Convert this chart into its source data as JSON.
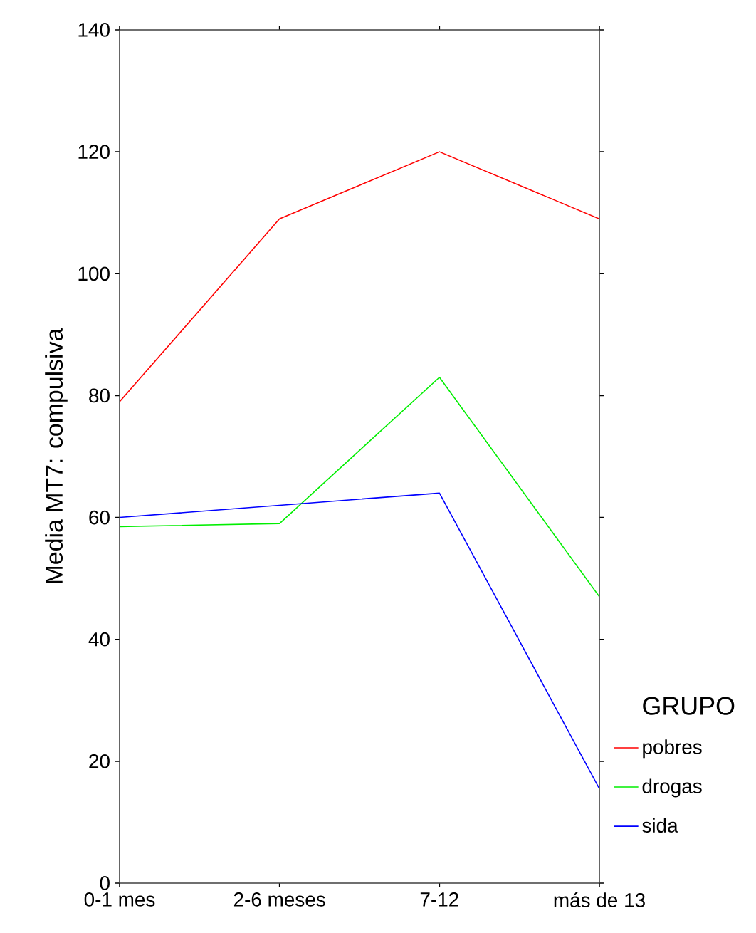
{
  "chart_data": {
    "type": "line",
    "ylabel": "Media MT7: compulsiva",
    "legend_title": "GRUPO",
    "categories": [
      "0-1 mes",
      "2-6 meses",
      "7-12",
      "más de 13"
    ],
    "series": [
      {
        "name": "pobres",
        "color": "#ff0000",
        "values": [
          79,
          109,
          120,
          109
        ]
      },
      {
        "name": "drogas",
        "color": "#00ee00",
        "values": [
          58.5,
          59,
          83,
          47
        ]
      },
      {
        "name": "sida",
        "color": "#0000ff",
        "values": [
          60,
          62,
          64,
          15.5
        ]
      }
    ],
    "ylim": [
      0,
      140
    ],
    "yticks": [
      0,
      20,
      40,
      60,
      80,
      100,
      120,
      140
    ],
    "grid": false,
    "legend": "right",
    "marker": "none",
    "line_style": "solid"
  }
}
